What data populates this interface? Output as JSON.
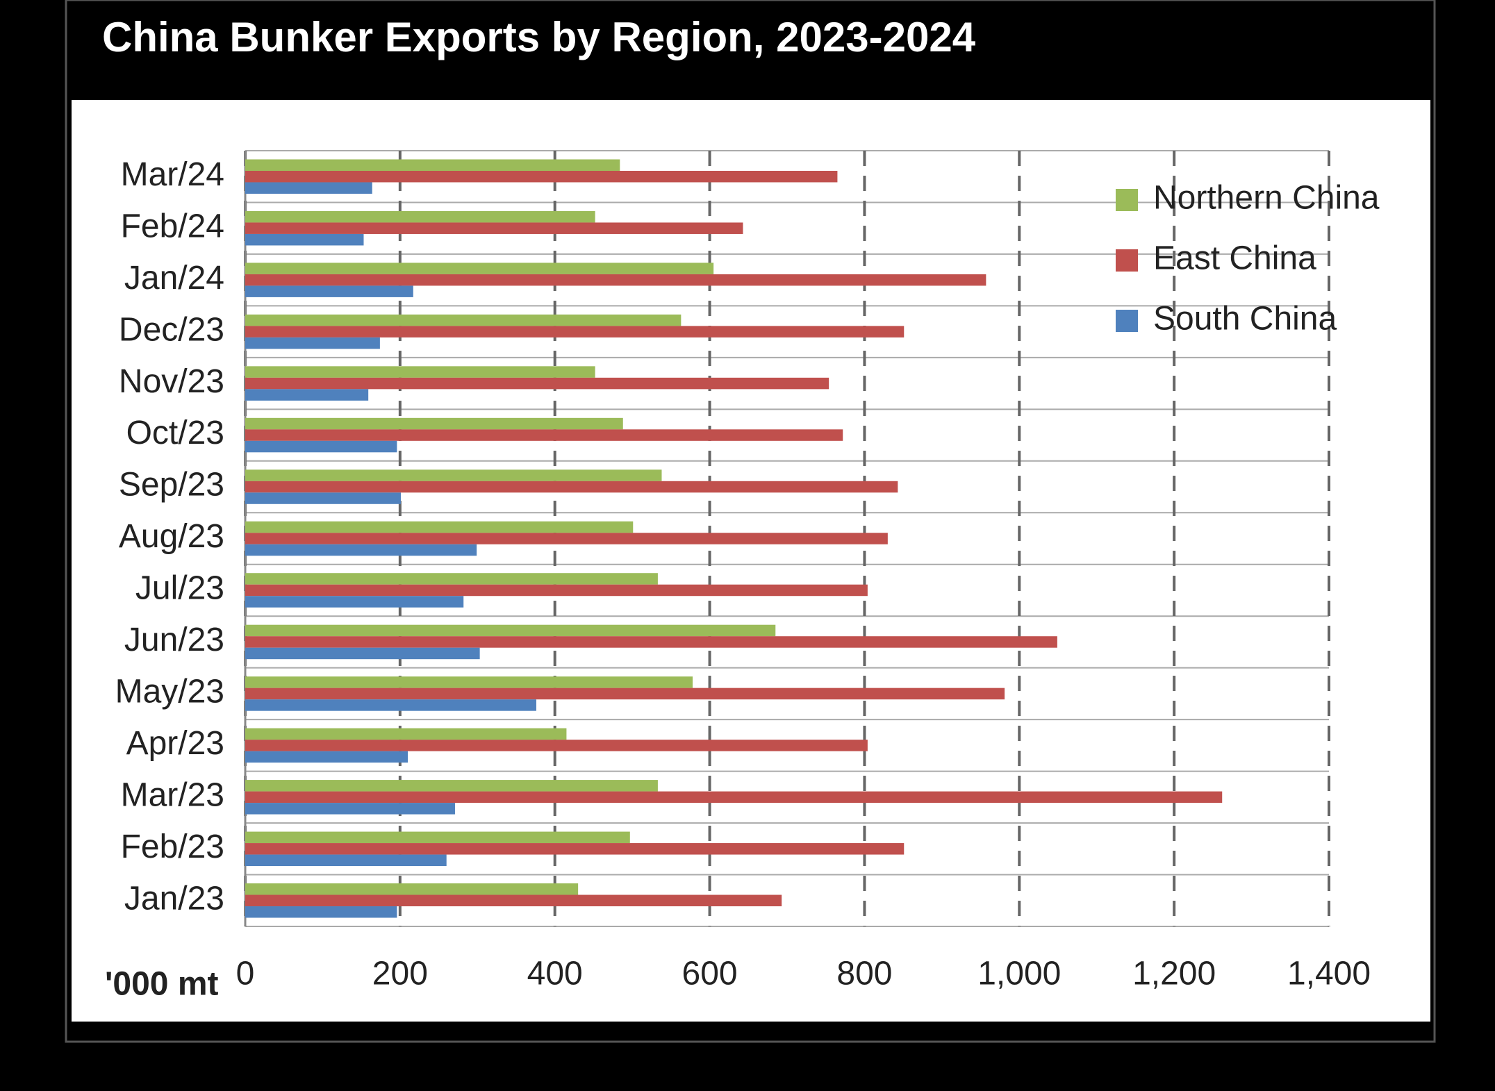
{
  "chart_data": {
    "type": "hbar",
    "title": "China Bunker Exports by Region, 2023-2024",
    "x_label": "'000 mt",
    "categories": [
      "Jan/23",
      "Feb/23",
      "Mar/23",
      "Apr/23",
      "May/23",
      "Jun/23",
      "Jul/23",
      "Aug/23",
      "Sep/23",
      "Oct/23",
      "Nov/23",
      "Dec/23",
      "Jan/24",
      "Feb/24",
      "Mar/24"
    ],
    "series": [
      {
        "name": "Northern China",
        "color": "#9bbb59",
        "values": [
          430,
          497,
          533,
          415,
          578,
          685,
          533,
          501,
          538,
          488,
          452,
          563,
          605,
          452,
          484
        ]
      },
      {
        "name": "East China",
        "color": "#c0504d",
        "values": [
          693,
          851,
          1262,
          804,
          981,
          1049,
          804,
          830,
          843,
          772,
          754,
          851,
          957,
          643,
          765
        ]
      },
      {
        "name": "South China",
        "color": "#4f81bd",
        "values": [
          196,
          260,
          271,
          210,
          376,
          303,
          282,
          299,
          201,
          196,
          159,
          174,
          217,
          153,
          164
        ]
      }
    ],
    "xlim": [
      0,
      1400
    ],
    "xticks": [
      0,
      200,
      400,
      600,
      800,
      {
        "value": 1000,
        "label": "1,000"
      },
      {
        "value": 1200,
        "label": "1,200"
      },
      {
        "value": 1400,
        "label": "1,400"
      }
    ],
    "grid": true,
    "legend": "top-right"
  }
}
